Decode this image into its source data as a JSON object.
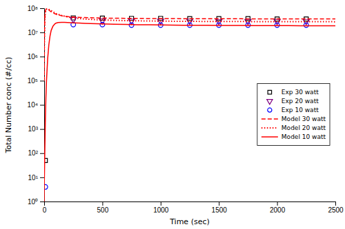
{
  "chart_data": {
    "type": "line",
    "xlabel": "Time (sec)",
    "ylabel": "Total Number conc (#/cc)",
    "log": "y",
    "grid": false,
    "legend": "right",
    "xlim": [
      0,
      2500
    ],
    "ylim": [
      1,
      100000000
    ],
    "xticks": [
      0,
      500,
      1000,
      1500,
      2000,
      2500
    ],
    "yticks": [
      {
        "value": 1,
        "label": "10⁰"
      },
      {
        "value": 10,
        "label": "10¹"
      },
      {
        "value": 100,
        "label": "10²"
      },
      {
        "value": 1000,
        "label": "10³"
      },
      {
        "value": 10000,
        "label": "10⁴"
      },
      {
        "value": 100000,
        "label": "10⁵"
      },
      {
        "value": 1000000,
        "label": "10⁶"
      },
      {
        "value": 10000000,
        "label": "10⁷"
      },
      {
        "value": 100000000,
        "label": "10⁸"
      }
    ],
    "series": [
      {
        "name": "Exp 30 watt",
        "type": "scatter",
        "marker": "square",
        "color": "black",
        "x": [
          10,
          250,
          500,
          750,
          1000,
          1250,
          1500,
          1750,
          2000,
          2250
        ],
        "values": [
          50,
          40000000.0,
          39000000.0,
          38000000.0,
          38000000.0,
          37000000.0,
          37000000.0,
          37000000.0,
          36000000.0,
          36000000.0
        ]
      },
      {
        "name": "Exp 20 watt",
        "type": "scatter",
        "marker": "triangle-down",
        "color": "#800080",
        "x": [
          250,
          500,
          750,
          1000,
          1250,
          1500,
          1750,
          2000,
          2250
        ],
        "values": [
          35000000.0,
          31000000.0,
          30000000.0,
          30000000.0,
          30000000.0,
          29000000.0,
          29000000.0,
          29000000.0,
          29000000.0
        ]
      },
      {
        "name": "Exp 10 watt",
        "type": "scatter",
        "marker": "circle",
        "color": "blue",
        "x": [
          10,
          250,
          500,
          750,
          1000,
          1250,
          1500,
          1750,
          2000,
          2250
        ],
        "values": [
          4,
          21000000.0,
          21000000.0,
          20000000.0,
          20000000.0,
          20000000.0,
          20000000.0,
          20000000.0,
          20000000.0,
          20000000.0
        ]
      },
      {
        "name": "Model 30 watt",
        "type": "line",
        "line_style": "dashed",
        "color": "red",
        "x": [
          0.1,
          1,
          3,
          5,
          8,
          10,
          15,
          20,
          30,
          40,
          50,
          60,
          75,
          90,
          100,
          120,
          150,
          175,
          200,
          250,
          300,
          350,
          400,
          450,
          500,
          600,
          700,
          800,
          900,
          1000,
          1100,
          1200,
          1300,
          1400,
          1500,
          1600,
          1700,
          1800,
          1900,
          2000,
          2100,
          2200,
          2300,
          2400,
          2500
        ],
        "values": [
          100000.0,
          2000000.0,
          10000000.0,
          30000000.0,
          60000000.0,
          75000000.0,
          90000000.0,
          95000000.0,
          92000000.0,
          85000000.0,
          78000000.0,
          72000000.0,
          65000000.0,
          60000000.0,
          57000000.0,
          53000000.0,
          49000000.0,
          47000000.0,
          45500000.0,
          43500000.0,
          42000000.0,
          41000000.0,
          40500000.0,
          39800000.0,
          39300000.0,
          38700000.0,
          38200000.0,
          37900000.0,
          37600000.0,
          37400000.0,
          37200000.0,
          37000000.0,
          36900000.0,
          36800000.0,
          36700000.0,
          36600000.0,
          36500000.0,
          36400000.0,
          36400000.0,
          36300000.0,
          36200000.0,
          36200000.0,
          36100000.0,
          36100000.0,
          36000000.0
        ]
      },
      {
        "name": "Model 20 watt",
        "type": "line",
        "line_style": "dotted",
        "color": "red",
        "x": [
          0.1,
          1,
          3,
          5,
          8,
          10,
          15,
          20,
          30,
          40,
          50,
          60,
          75,
          90,
          100,
          120,
          150,
          175,
          200,
          250,
          300,
          350,
          400,
          450,
          500,
          600,
          700,
          800,
          900,
          1000,
          1100,
          1200,
          1300,
          1400,
          1500,
          1600,
          1700,
          1800,
          1900,
          2000,
          2100,
          2200,
          2300,
          2400,
          2500
        ],
        "values": [
          100000.0,
          2000000.0,
          10000000.0,
          25000000.0,
          50000000.0,
          65000000.0,
          85000000.0,
          92000000.0,
          95000000.0,
          90000000.0,
          85000000.0,
          80000000.0,
          72000000.0,
          65000000.0,
          61000000.0,
          56000000.0,
          50000000.0,
          47000000.0,
          44000000.0,
          40000000.0,
          37500000.0,
          35800000.0,
          34500000.0,
          33500000.0,
          32700000.0,
          31500000.0,
          30700000.0,
          30100000.0,
          29700000.0,
          29300000.0,
          29000000.0,
          28800000.0,
          28600000.0,
          28400000.0,
          28300000.0,
          28200000.0,
          28100000.0,
          28000000.0,
          28000000.0,
          27900000.0,
          27800000.0,
          27800000.0,
          27700000.0,
          27700000.0,
          27600000.0
        ]
      },
      {
        "name": "Model 10 watt",
        "type": "line",
        "line_style": "solid",
        "color": "red",
        "x": [
          0.1,
          1,
          3,
          5,
          8,
          10,
          15,
          20,
          30,
          40,
          50,
          60,
          75,
          90,
          100,
          120,
          150,
          175,
          200,
          250,
          300,
          350,
          400,
          450,
          500,
          600,
          700,
          800,
          900,
          1000,
          1100,
          1200,
          1300,
          1400,
          1500,
          1600,
          1700,
          1800,
          1900,
          2000,
          2100,
          2200,
          2300,
          2400,
          2500
        ],
        "values": [
          1,
          5,
          20,
          80,
          500,
          2000,
          20000.0,
          100000.0,
          800000.0,
          3000000.0,
          7000000.0,
          12000000.0,
          18000000.0,
          22000000.0,
          24000000.0,
          25500000.0,
          26000000.0,
          26000000.0,
          25700000.0,
          25000000.0,
          24300000.0,
          23700000.0,
          23200000.0,
          22800000.0,
          22400000.0,
          21800000.0,
          21300000.0,
          20900000.0,
          20600000.0,
          20300000.0,
          20100000.0,
          19900000.0,
          19700000.0,
          19600000.0,
          19500000.0,
          19400000.0,
          19300000.0,
          19200000.0,
          19100000.0,
          19000000.0,
          19000000.0,
          18900000.0,
          18900000.0,
          18800000.0,
          18800000.0
        ]
      }
    ]
  }
}
